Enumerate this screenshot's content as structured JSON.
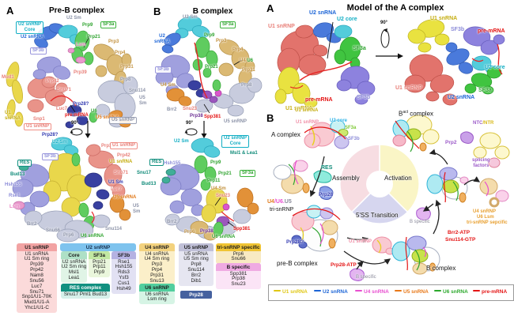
{
  "colors": {
    "u1_snrna": "#e8cd1a",
    "u2_snrna": "#1b64d6",
    "u4_snrna": "#e84fd0",
    "u5_snrna": "#e87818",
    "u6_snrna": "#2ba82b",
    "pre_mrna": "#e41414",
    "sf3a_green": "#3cb43c",
    "sf3b_lavender": "#8b8bd8",
    "u2_core_cyan": "#12aec4",
    "u1_snrnp_salmon": "#e87f78",
    "res_teal": "#0e8a78",
    "prp28_navy": "#3038b0",
    "pie_assembly": "#f7dde2",
    "pie_activation": "#faf5c6",
    "pie_transition": "#d6d6ef"
  },
  "left_a": {
    "tag": "A",
    "title": "Pre-B complex",
    "rotation": "90°",
    "top": {
      "u2_core_box": "U2 snRNP\nCore",
      "u2_snrna": "U2 snRNA",
      "sf3b_box": "SF3b",
      "u2_sm": "U2 Sm",
      "prp9": "Prp9",
      "sf3a_box": "SF3a",
      "prp21": "Prp21",
      "prp3": "Prp3",
      "lsm": "Lsm",
      "prp4": "Prp4",
      "prp31": "Prp31",
      "prp8": "Prp8",
      "mud1": "Mud1",
      "prp39": "Prp39",
      "prp42": "Prp42",
      "snu71": "Snu71",
      "snu114": "Snu114",
      "u5_sm": "U5\nSm",
      "luc7": "Luc7",
      "snp1": "Snp1",
      "u1_snrna": "U1\nsnRNA",
      "prp28q": "Prp28?",
      "pre_mrna": "pre-mRNA",
      "u6": "U6",
      "u5_snrna": "U5 snRNA",
      "u1_snrnp_box": "U1 snRNP",
      "prp28q2": "Prp28?",
      "u5_snrnp_box": "U5 snRNP"
    },
    "bottom": {
      "u2_sm": "U2 Sm",
      "prp39": "Prp39",
      "u1_snrnp_box": "U1 snRNP",
      "prp42": "Prp42",
      "u1_snrna": "U1 snRNA",
      "sf3b_box": "SF3b",
      "res_box": "RES",
      "bud13": "Bud13",
      "hsh155": "Hsh155",
      "rse1": "Rse1",
      "lsm": "Lsm",
      "snu71": "Snu71",
      "u1_sm": "U1 Sm",
      "luc7": "Luc7",
      "u5_snrna": "U5 snRNA",
      "u5_sm": "U5\nSm",
      "brr2": "Brr2",
      "snu66": "Snu66",
      "prp6": "Prp6",
      "u6_snrna": "U6 snRNA",
      "snu114": "Snu114"
    }
  },
  "left_b": {
    "tag": "B",
    "title": "B complex",
    "rotation": "90°",
    "top": {
      "u2_sm": "U2 Sm",
      "sf3a_box": "SF3a",
      "u2_snrna": "U2\nsnRNA",
      "prp9": "Prp9",
      "prp3": "Prp3",
      "prp4": "Prp4",
      "u4": "U4/",
      "u6": "U6",
      "prp31": "Prp31",
      "sf3b_box": "SF3b",
      "prp21": "Prp21",
      "prp8": "Prp8",
      "u4_sm": "U4 Sm",
      "brr2": "Brr2",
      "snu23": "Snu23",
      "prp38": "Prp38",
      "spp381": "Spp381",
      "u5_snrnp": "U5 snRNP"
    },
    "bottom": {
      "u2_sm": "U2 Sm",
      "u2_core_box": "U2 snRNP\nCore",
      "msl1_lea1": "Msl1 & Lea1",
      "prp9": "Prp9",
      "res_box": "RES",
      "hsh155": "Hsh155",
      "snu17": "Snu17",
      "bud13": "Bud13",
      "prp21": "Prp21",
      "prp11": "Prp11",
      "sf3a_box": "SF3a",
      "u4_sm": "U4 Sm",
      "snu23": "Snu23",
      "brr2": "Brr2",
      "prp6": "Prp6",
      "prp38": "Prp38",
      "spp381": "Spp381",
      "u6_snrna": "U6 snRNA"
    }
  },
  "tables": {
    "u1": {
      "header": "U1 snRNP",
      "rows": [
        "U1 snRNA",
        "U1 Sm ring",
        "Prp39",
        "Prp42",
        "Nam8",
        "Snu56",
        "Luc7",
        "Snu71",
        "Snp1/U1-70K",
        "Mud1/U1-A",
        "Yhc1/U1-C"
      ]
    },
    "u2": {
      "header": "U2 snRNP",
      "core": {
        "header": "Core",
        "rows": [
          "U2 snRNA",
          "U2 Sm ring",
          "Msl1",
          "Lea1"
        ]
      },
      "sf3a": {
        "header": "SF3a",
        "rows": [
          "Prp21",
          "Prp11",
          "Prp9"
        ]
      },
      "sf3b": {
        "header": "SF3b",
        "rows": [
          "Rse1",
          "Hsh155",
          "Rds3",
          "Ysf3",
          "Cus1",
          "Hsh49"
        ]
      },
      "res": {
        "header": "RES complex",
        "rows": [
          "Snu17  Pml1  Bud13"
        ]
      }
    },
    "u4": {
      "header": "U4 snRNP",
      "rows": [
        "U4 snRNA",
        "U4 Sm ring",
        "Prp3",
        "Prp4",
        "Prp31",
        "Snu13"
      ]
    },
    "u6": {
      "header": "U6 snRNP",
      "rows": [
        "U6 snRNA",
        "Lsm ring"
      ]
    },
    "u5": {
      "header": "U5 snRNP",
      "rows": [
        "U5 snRNA",
        "U5 Sm ring",
        "Prp8",
        "Snu114",
        "Brr2",
        "Dib1"
      ],
      "extra": "Prp28"
    },
    "tri": {
      "header": "tri-snRNP specific",
      "rows": [
        "Prp6",
        "Snu66"
      ]
    },
    "bsp": {
      "header": "B specific",
      "rows": [
        "Spp381",
        "Prp38",
        "Snu23"
      ]
    }
  },
  "right_a": {
    "tag": "A",
    "title": "Model of the A complex",
    "rotation": "90°",
    "left": {
      "u2_snrna": "U2 snRNA",
      "u2_core": "U2 core",
      "u1_snrnp": "U1 snRNP",
      "sf3a": "SF3a",
      "pre_mrna": "pre-mRNA",
      "sf3b": "SF3b",
      "u1_snrna": "U1 snRNA"
    },
    "right": {
      "u1_snrna": "U1 snRNA",
      "sf3b": "SF3b",
      "pre_mrna": "pre-mRNA",
      "u2_core": "U2 core",
      "u1_snrnp": "U1 snRNP",
      "sf3a": "SF3a",
      "u2_snrna": "U2 snRNA"
    }
  },
  "right_b": {
    "tag": "B",
    "pie": {
      "assembly": "Assembly",
      "activation": "Activation",
      "transition": "5'SS Transition"
    },
    "stages": {
      "a_complex": "A complex",
      "pre_b": "pre-B complex",
      "b_complex": "B complex",
      "bact_b": "B",
      "bact_sup": "act",
      "bact_rest": " complex"
    },
    "labels": {
      "u1_snrna": "U1 snRNA",
      "u1_snrnp_a": "U1 snRNP",
      "u2_core": "U2 core",
      "sf3a": "SF3a",
      "sf3b": "SF3b",
      "res": "RES",
      "prp28": "Prp28",
      "u4": "U4",
      "u6": "/U6.",
      "u5": "U5",
      "tri_snrnp": "tri-snRNP",
      "prp28q": "Prp28?",
      "prp28_atp": "Prp28-ATP",
      "b_specific_in": "B specific",
      "u1_snrnp_out": "U1 snRNP",
      "brr2_atp": "Brr2-ATP",
      "snu114_gtp": "Snu114-GTP",
      "b_specific_out": "B specific",
      "u4_snrnp": "U4 snRNP",
      "u6_lsm": "U6 Lsm",
      "tri_specific": "tri-snRNP sepcific",
      "ntc": "NTC",
      "ntr": "/NTR",
      "prp2": "Prp2",
      "splicing": "splicing\nfactors"
    },
    "legend": [
      {
        "label": "U1 snRNA",
        "color": "#e0c714"
      },
      {
        "label": "U2 snRNA",
        "color": "#1b64d6"
      },
      {
        "label": "U4 snRNA",
        "color": "#e84fd0"
      },
      {
        "label": "U5 snRNA",
        "color": "#e87818"
      },
      {
        "label": "U6 snRNA",
        "color": "#2ba82b"
      },
      {
        "label": "pre-mRNA",
        "color": "#e41414"
      }
    ]
  }
}
